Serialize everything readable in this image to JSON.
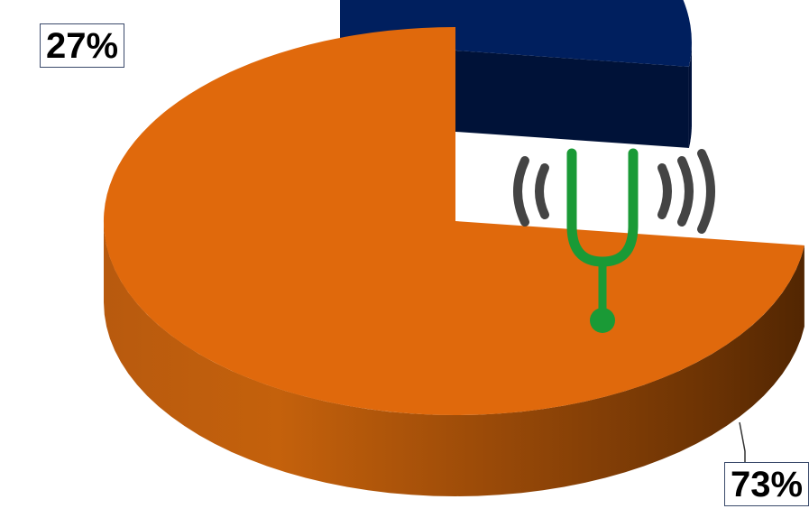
{
  "chart_data": {
    "type": "pie",
    "title": "",
    "slices": [
      {
        "label": "",
        "value": 27,
        "display": "27%",
        "color": "#001f5e",
        "exploded": true
      },
      {
        "label": "",
        "value": 73,
        "display": "73%",
        "color": "#e0690c",
        "exploded": false
      }
    ],
    "three_d": true,
    "legend": "none"
  },
  "icon": {
    "name": "tuning-fork-icon",
    "fork_color": "#1a9a36",
    "waves_color": "#444444"
  }
}
